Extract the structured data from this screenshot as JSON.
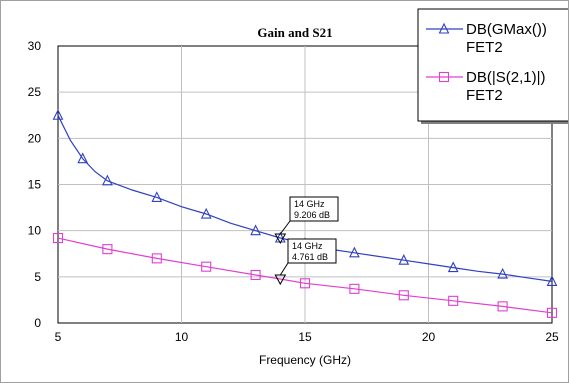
{
  "chart_data": {
    "type": "line",
    "title": "Gain and S21",
    "xlabel": "Frequency (GHz)",
    "ylabel": "",
    "xlim": [
      5,
      25
    ],
    "ylim": [
      0,
      30
    ],
    "x_ticks": [
      "5",
      "10",
      "15",
      "20",
      "25"
    ],
    "y_ticks": [
      "0",
      "5",
      "10",
      "15",
      "20",
      "25",
      "30"
    ],
    "grid": true,
    "legend_position": "top-right",
    "series": [
      {
        "name": "DB(GMax())",
        "name_line2": "FET2",
        "color": "#3040c0",
        "marker": "triangle",
        "x": [
          5,
          5.5,
          6,
          6.5,
          7,
          8,
          9,
          10,
          11,
          12,
          13,
          14,
          15,
          16,
          17,
          18,
          19,
          20,
          21,
          22,
          23,
          24,
          25
        ],
        "y": [
          22.5,
          19.8,
          17.8,
          16.4,
          15.4,
          14.4,
          13.6,
          12.6,
          11.8,
          10.8,
          10.0,
          9.206,
          8.6,
          8.0,
          7.6,
          7.2,
          6.8,
          6.4,
          6.0,
          5.6,
          5.3,
          4.9,
          4.5
        ]
      },
      {
        "name": "DB(|S(2,1)|)",
        "name_line2": "FET2",
        "color": "#e040d0",
        "marker": "square",
        "x": [
          5,
          7,
          9,
          11,
          13,
          14,
          15,
          17,
          19,
          21,
          23,
          25
        ],
        "y": [
          9.2,
          8.0,
          7.0,
          6.1,
          5.2,
          4.761,
          4.3,
          3.7,
          3.0,
          2.4,
          1.8,
          1.1
        ]
      }
    ],
    "marker_series_indices": [
      [
        0,
        2,
        4,
        6,
        8,
        10,
        11,
        12,
        14,
        16,
        18,
        20,
        22
      ],
      [
        0,
        1,
        2,
        3,
        4,
        6,
        7,
        8,
        9,
        10,
        11
      ]
    ],
    "annotations": [
      {
        "series": 0,
        "x": 14,
        "y": 9.206,
        "line1": "14 GHz",
        "line2": "9.206 dB"
      },
      {
        "series": 1,
        "x": 14,
        "y": 4.761,
        "line1": "14 GHz",
        "line2": "4.761 dB"
      }
    ]
  }
}
